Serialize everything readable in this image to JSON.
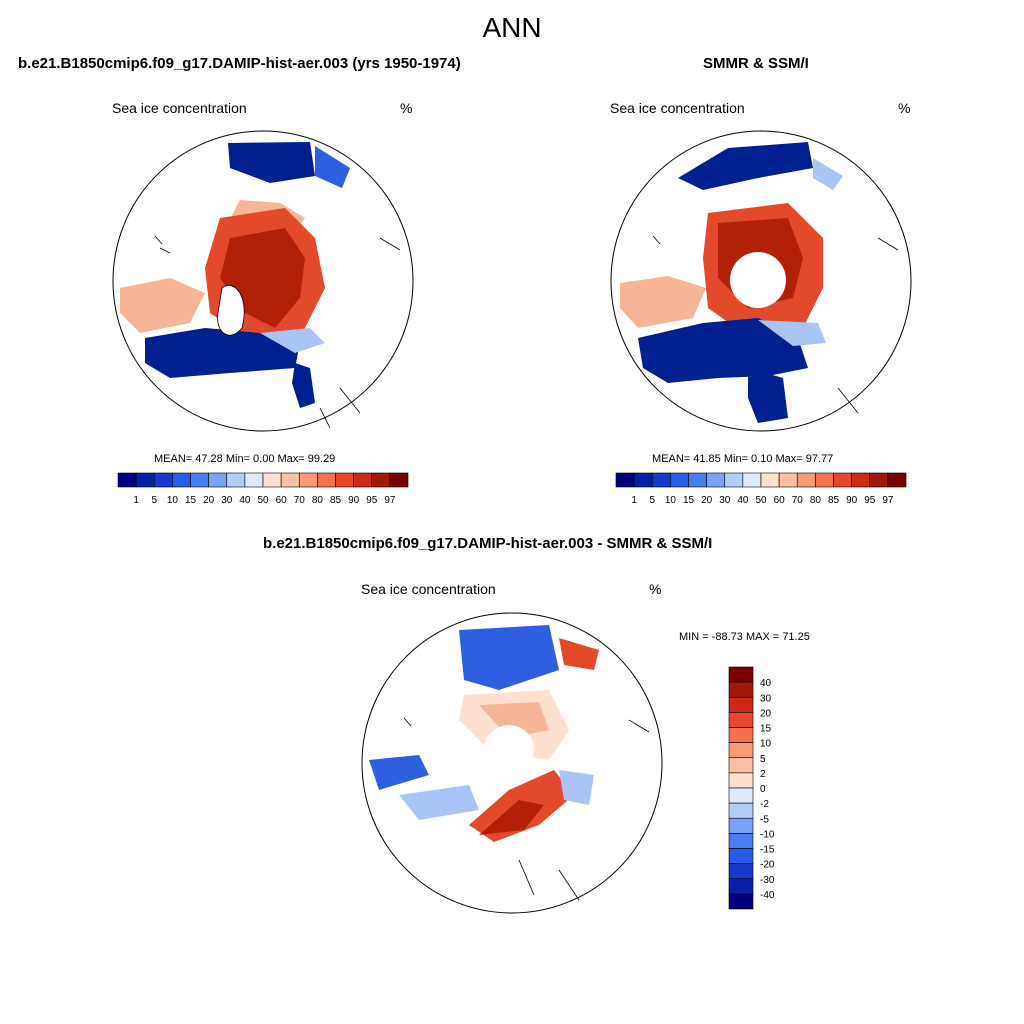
{
  "main_title": "ANN",
  "panel_left": {
    "title": "b.e21.B1850cmip6.f09_g17.DAMIP-hist-aer.003 (yrs 1950-1974)",
    "variable": "Sea ice concentration",
    "unit": "%",
    "stats": "MEAN=  47.28  Min=    0.00  Max=  99.29"
  },
  "panel_right": {
    "title": "SMMR & SSM/I",
    "variable": "Sea ice concentration",
    "unit": "%",
    "stats": "MEAN=  41.85  Min=    0.10  Max=  97.77"
  },
  "panel_diff": {
    "title": "b.e21.B1850cmip6.f09_g17.DAMIP-hist-aer.003 - SMMR & SSM/I",
    "variable": "Sea ice concentration",
    "unit": "%",
    "minmax": "MIN = -88.73 MAX =  71.25"
  },
  "colorbar_abs": {
    "labels": [
      "1",
      "5",
      "10",
      "15",
      "20",
      "30",
      "40",
      "50",
      "60",
      "70",
      "80",
      "85",
      "90",
      "95",
      "97"
    ],
    "colors": [
      "#00007f",
      "#0a1fa8",
      "#1539cc",
      "#2a5be6",
      "#4a7cf2",
      "#7aa2f7",
      "#b3cdf8",
      "#dfe9fb",
      "#fde0d0",
      "#fbbfa3",
      "#f89b74",
      "#f2724b",
      "#e9462a",
      "#cc2a14",
      "#a3170a",
      "#7a0000"
    ]
  },
  "colorbar_diff": {
    "labels": [
      "40",
      "30",
      "20",
      "15",
      "10",
      "5",
      "2",
      "0",
      "-2",
      "-5",
      "-10",
      "-15",
      "-20",
      "-30",
      "-40"
    ],
    "colors": [
      "#7a0000",
      "#a3170a",
      "#cc2a14",
      "#e9462a",
      "#f2724b",
      "#f89b74",
      "#fbbfa3",
      "#fde0d0",
      "#dfe9fb",
      "#b3cdf8",
      "#7aa2f7",
      "#4a7cf2",
      "#2a5be6",
      "#1539cc",
      "#0a1fa8",
      "#00007f"
    ]
  },
  "map_colors": {
    "ice_high": "#b32008",
    "ice_mid": "#e34a2c",
    "ice_low": "#f6b596",
    "ice_edge": "#fde0d0",
    "low_dark": "#00208f",
    "low_mid": "#2d5fe0",
    "low_light": "#a9c4f5",
    "pole_hole": "#ffffff"
  }
}
